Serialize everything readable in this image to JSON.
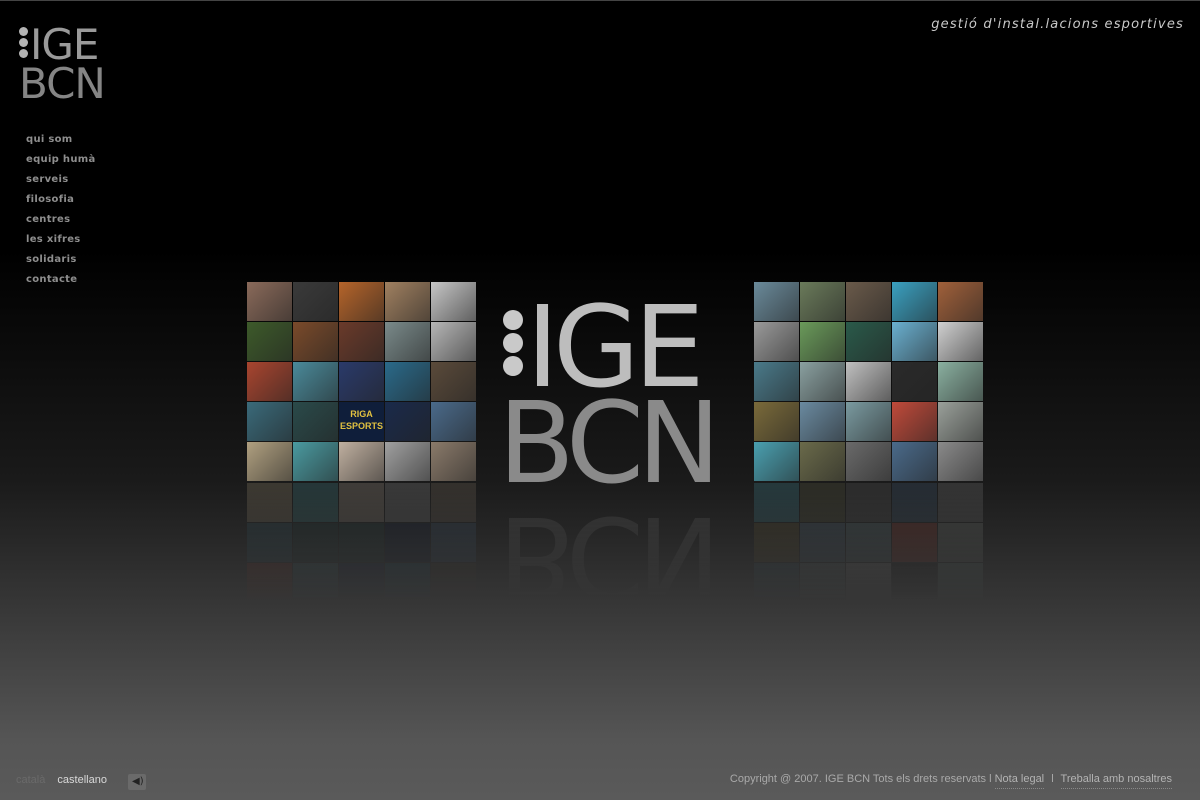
{
  "header": {
    "logo_top": "IGE",
    "logo_bottom": "BCN",
    "tagline": "gestió d'instal.lacions esportives"
  },
  "nav": {
    "items": [
      {
        "label": "qui som"
      },
      {
        "label": "equip humà"
      },
      {
        "label": "serveis"
      },
      {
        "label": "filosofia"
      },
      {
        "label": "centres"
      },
      {
        "label": "les xifres"
      },
      {
        "label": "solidaris"
      },
      {
        "label": "contacte"
      }
    ]
  },
  "center_logo": {
    "line1": "IGE",
    "line2": "BCN"
  },
  "mosaic_left": {
    "colors": [
      "#8a6a5a",
      "#3a3a3a",
      "#b5642a",
      "#a08060",
      "#c6c6c6",
      "#3d5a2a",
      "#7a4a2a",
      "#6a3a2a",
      "#7a8a8a",
      "#b6b6b6",
      "#a9452f",
      "#4a8a9a",
      "#2a3a6a",
      "#2a6a8a",
      "#5a4a3a",
      "#3a6a7a",
      "#2a4a4a",
      "#2a4a4a",
      "#1a2a4a",
      "#4a6a8a",
      "#b0a080",
      "#4a9aa0",
      "#c0b0a0",
      "#a0a0a0",
      "#8a7a6a"
    ],
    "tile_text": [
      "RIGA",
      "ESPORTS"
    ]
  },
  "mosaic_right": {
    "colors": [
      "#6a8a9a",
      "#6a7a5a",
      "#6a5a4a",
      "#3aa0c0",
      "#a0603a",
      "#9a9a9a",
      "#6a9a5a",
      "#2a5a4a",
      "#6ab0d0",
      "#d0d0d0",
      "#4a7a8a",
      "#8aa0a0",
      "#c0c0c0",
      "#2a2a2a",
      "#8ab0a0",
      "#7a6a3a",
      "#6a8aa0",
      "#7a9aa0",
      "#c04a3a",
      "#9aa09a",
      "#4aa0b0",
      "#6a6a4a",
      "#6a6a6a",
      "#4a6a8a",
      "#8a8a8a"
    ]
  },
  "footer": {
    "lang_ca": "català",
    "lang_es": "castellano",
    "sound_icon": "speaker-icon",
    "copyright": "Copyright @ 2007. IGE BCN  Tots els drets reservats l",
    "legal": "Nota legal",
    "sep": "l",
    "jobs": "Treballa amb nosaltres"
  }
}
